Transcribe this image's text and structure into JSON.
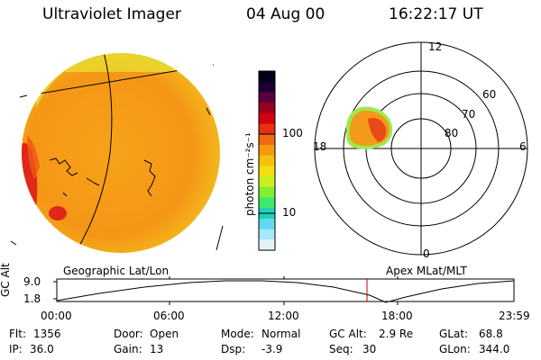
{
  "header": {
    "instrument": "Ultraviolet Imager",
    "date": "04 Aug 00",
    "time": "16:22:17 UT"
  },
  "colorbar": {
    "unit_label": "photon cm⁻²s⁻¹",
    "ticks": [
      "100",
      "10"
    ],
    "colors_top_to_bottom": [
      "#000018",
      "#1a0030",
      "#5a0040",
      "#9a0020",
      "#d20010",
      "#e83010",
      "#f06a10",
      "#f59a10",
      "#f8c010",
      "#f0e010",
      "#c8f020",
      "#80f030",
      "#40e870",
      "#20d0b8",
      "#60d8f0",
      "#a8e8f8",
      "#e0f4f8"
    ]
  },
  "polar_plot": {
    "mlt_labels": {
      "top": "12",
      "left": "18",
      "right": "6",
      "bottom": "0"
    },
    "lat_labels": [
      "60",
      "70",
      "80"
    ]
  },
  "panel_labels": {
    "left": "Geographic Lat/Lon",
    "right": "Apex MLat/MLT"
  },
  "altitude_strip": {
    "axis_title": "GC Alt",
    "y_ticks": [
      "9.0",
      "1.8"
    ],
    "x_ticks": [
      "00:00",
      "06:00",
      "12:00",
      "18:00",
      "23:59"
    ],
    "marker_time": "16:22"
  },
  "status": {
    "flt": {
      "label": "Flt:",
      "value": "1356"
    },
    "ip": {
      "label": "IP:",
      "value": "36.0"
    },
    "door": {
      "label": "Door:",
      "value": "Open"
    },
    "gain": {
      "label": "Gain:",
      "value": "13"
    },
    "mode": {
      "label": "Mode:",
      "value": "Normal"
    },
    "dsp": {
      "label": "Dsp:",
      "value": "-3.9"
    },
    "gcalt": {
      "label": "GC Alt:",
      "value": "2.9 Re"
    },
    "seq": {
      "label": "Seq:",
      "value": "30"
    },
    "glat": {
      "label": "GLat:",
      "value": "68.8"
    },
    "glon": {
      "label": "GLon:",
      "value": "344.0"
    }
  }
}
